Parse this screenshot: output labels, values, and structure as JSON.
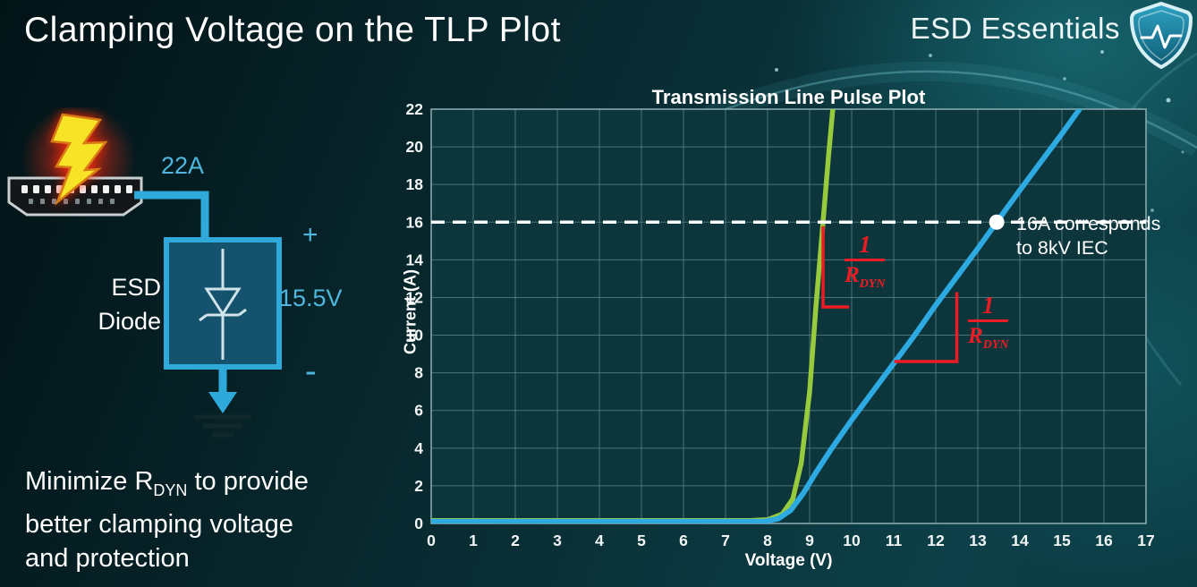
{
  "header": {
    "title": "Clamping Voltage on the TLP Plot",
    "brand": "ESD Essentials"
  },
  "circuit": {
    "surge_current": "22A",
    "device_line1": "ESD",
    "device_line2": "Diode",
    "plus": "+",
    "clamp_voltage": "15.5V",
    "minus": "-"
  },
  "footnote": {
    "lead": "Minimize R",
    "lead_sub": "DYN",
    "lead_tail": " to provide",
    "line2": "better clamping voltage",
    "line3": "and protection"
  },
  "chart_data": {
    "type": "line",
    "title": "Transmission Line Pulse Plot",
    "xlabel": "Voltage (V)",
    "ylabel": "Current (A)",
    "xlim": [
      0,
      17
    ],
    "ylim": [
      0,
      22
    ],
    "xtick_step": 1,
    "ytick_step": 2,
    "grid": true,
    "plot_bg": "#0c353c",
    "grid_color": "#5a838a",
    "series": [
      {
        "name": "low-rdyn-esd-diode",
        "color": "#97ca3d",
        "width": 5.5,
        "points": [
          [
            0,
            0.15
          ],
          [
            7.6,
            0.15
          ],
          [
            8.0,
            0.2
          ],
          [
            8.35,
            0.5
          ],
          [
            8.6,
            1.3
          ],
          [
            8.8,
            3.2
          ],
          [
            9.0,
            7
          ],
          [
            9.15,
            11.5
          ],
          [
            9.3,
            15.5
          ],
          [
            9.45,
            19.5
          ],
          [
            9.55,
            22
          ]
        ]
      },
      {
        "name": "high-rdyn-esd-diode",
        "color": "#2daae1",
        "width": 6,
        "points": [
          [
            0,
            0.1
          ],
          [
            7.9,
            0.1
          ],
          [
            8.25,
            0.25
          ],
          [
            8.55,
            0.7
          ],
          [
            8.85,
            1.6
          ],
          [
            9.15,
            2.7
          ],
          [
            9.5,
            3.9
          ],
          [
            10,
            5.5
          ],
          [
            10.5,
            7
          ],
          [
            11,
            8.5
          ],
          [
            11.5,
            10
          ],
          [
            12,
            11.6
          ],
          [
            12.5,
            13.1
          ],
          [
            13,
            14.6
          ],
          [
            13.45,
            16
          ],
          [
            14,
            17.7
          ],
          [
            14.5,
            19.2
          ],
          [
            15,
            20.7
          ],
          [
            15.42,
            22
          ]
        ]
      }
    ],
    "threshold": {
      "y": 16,
      "color": "#ffffff",
      "style": "dashed",
      "marker": {
        "x": 13.45,
        "y": 16
      },
      "label_line1": "16A corresponds",
      "label_line2": "to 8kV IEC"
    },
    "annotations": [
      {
        "id": "green-slope",
        "color": "#ed1c24",
        "numerator": "1",
        "denominator": "R",
        "denominator_sub": "DYN",
        "segments": [
          [
            [
              9.32,
              15.7
            ],
            [
              9.32,
              11.5
            ]
          ],
          [
            [
              9.32,
              11.5
            ],
            [
              9.9,
              11.5
            ]
          ]
        ]
      },
      {
        "id": "blue-slope",
        "color": "#ed1c24",
        "numerator": "1",
        "denominator": "R",
        "denominator_sub": "DYN",
        "segments": [
          [
            [
              11.05,
              8.6
            ],
            [
              12.5,
              8.6
            ]
          ],
          [
            [
              12.5,
              8.6
            ],
            [
              12.5,
              12.2
            ]
          ]
        ]
      }
    ]
  }
}
